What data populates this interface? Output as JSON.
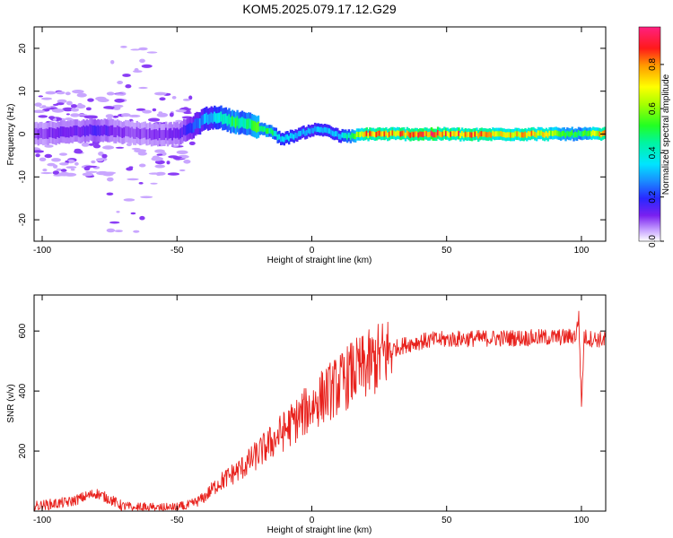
{
  "figure_title": "KOM5.2025.079.17.12.G29",
  "chart_data": [
    {
      "type": "heatmap",
      "title": "KOM5.2025.079.17.12.G29",
      "xlabel": "Height of straight line (km)",
      "ylabel": "Frequency (Hz)",
      "xlim": [
        -103,
        109
      ],
      "ylim": [
        -25,
        25
      ],
      "x_ticks": [
        -100,
        -50,
        0,
        50,
        100
      ],
      "y_ticks": [
        -20,
        -10,
        0,
        10,
        20
      ],
      "colorbar": {
        "label": "Normalized spectral amplitude",
        "range": [
          0,
          0.97
        ],
        "ticks": [
          0.0,
          0.2,
          0.4,
          0.6,
          0.8
        ]
      },
      "ridge": {
        "description": "dominant frequency trace",
        "x": [
          -103,
          -90,
          -80,
          -70,
          -60,
          -50,
          -45,
          -40,
          -35,
          -30,
          -25,
          -20,
          -15,
          -12,
          -10,
          -5,
          0,
          5,
          10,
          15,
          20,
          30,
          40,
          50,
          60,
          70,
          80,
          90,
          100,
          109
        ],
        "y": [
          0,
          0.5,
          1,
          0.5,
          0,
          0,
          1.5,
          3.5,
          4,
          3,
          2.5,
          1.5,
          0.5,
          -1,
          -1,
          0,
          1,
          1,
          -0.5,
          -0.5,
          0,
          0,
          0,
          0,
          -0.2,
          0,
          0,
          0,
          0,
          0
        ],
        "amplitude": [
          0.1,
          0.12,
          0.15,
          0.1,
          0.1,
          0.12,
          0.2,
          0.3,
          0.35,
          0.5,
          0.45,
          0.5,
          0.45,
          0.35,
          0.35,
          0.3,
          0.3,
          0.35,
          0.3,
          0.5,
          0.8,
          0.75,
          0.85,
          0.8,
          0.8,
          0.7,
          0.75,
          0.6,
          0.5,
          0.8
        ]
      }
    },
    {
      "type": "line",
      "xlabel": "Height of straight line (km)",
      "ylabel": "SNR (v/v)",
      "xlim": [
        -103,
        109
      ],
      "ylim": [
        0,
        720
      ],
      "x_ticks": [
        -100,
        -50,
        0,
        50,
        100
      ],
      "y_ticks": [
        200,
        400,
        600
      ],
      "color": "#e8211c",
      "x": [
        -103,
        -95,
        -90,
        -85,
        -80,
        -75,
        -70,
        -65,
        -60,
        -55,
        -50,
        -45,
        -40,
        -35,
        -30,
        -25,
        -20,
        -15,
        -10,
        -5,
        0,
        5,
        10,
        15,
        20,
        25,
        30,
        35,
        40,
        45,
        50,
        55,
        60,
        65,
        70,
        75,
        80,
        85,
        90,
        95,
        98,
        99,
        100,
        101,
        103,
        109
      ],
      "y": [
        15,
        25,
        30,
        45,
        60,
        40,
        15,
        10,
        10,
        8,
        10,
        20,
        45,
        90,
        120,
        150,
        190,
        230,
        270,
        310,
        350,
        390,
        420,
        460,
        480,
        510,
        540,
        555,
        565,
        570,
        572,
        574,
        575,
        576,
        576,
        577,
        577,
        578,
        579,
        580,
        585,
        650,
        350,
        580,
        575,
        570
      ]
    }
  ]
}
